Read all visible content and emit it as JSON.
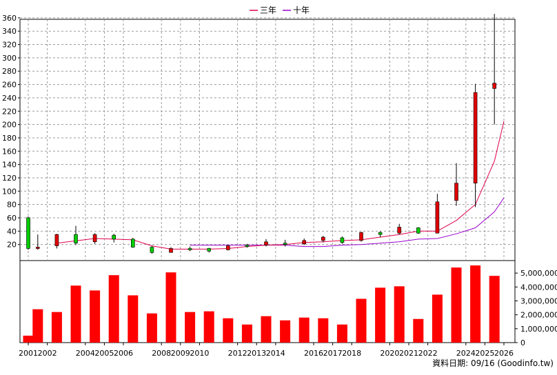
{
  "chart_data": {
    "type": "candlestick+bar",
    "legend": [
      {
        "name": "三年",
        "color": "#e0004a"
      },
      {
        "name": "十年",
        "color": "#9900cc"
      }
    ],
    "legend_position": "top-center",
    "price_axis": {
      "range": [
        0,
        370
      ],
      "ticks": [
        20,
        40,
        60,
        80,
        100,
        120,
        140,
        160,
        180,
        200,
        220,
        240,
        260,
        280,
        300,
        320,
        340,
        360
      ],
      "side": "left",
      "grid": true
    },
    "volume_axis": {
      "range": [
        0,
        5900000
      ],
      "ticks": [
        "0",
        "1,000,000",
        "2,000,000",
        "3,000,000",
        "4,000,000",
        "5,000,000"
      ],
      "tick_values": [
        0,
        1000000,
        2000000,
        3000000,
        4000000,
        5000000
      ],
      "side": "right"
    },
    "x_labels": [
      "2001",
      "2002",
      "2004",
      "2005",
      "2006",
      "2008",
      "2009",
      "2010",
      "2012",
      "2013",
      "2014",
      "2016",
      "2017",
      "2018",
      "2020",
      "2021",
      "2022",
      "2024",
      "2025",
      "2026"
    ],
    "periods": [
      {
        "x": 2001.0,
        "open": 14,
        "high": 62,
        "low": 12,
        "close": 60,
        "volume": 500000
      },
      {
        "x": 2001.5,
        "open": 16,
        "high": 35,
        "low": 12,
        "close": 15,
        "volume": 2400000
      },
      {
        "x": 2002.5,
        "open": 35,
        "high": 36,
        "low": 14,
        "close": 18,
        "volume": 2200000
      },
      {
        "x": 2003.5,
        "open": 22,
        "high": 48,
        "low": 19,
        "close": 35,
        "volume": 4100000
      },
      {
        "x": 2004.5,
        "open": 35,
        "high": 37,
        "low": 21,
        "close": 24,
        "volume": 3750000
      },
      {
        "x": 2005.5,
        "open": 28,
        "high": 36,
        "low": 23,
        "close": 34,
        "volume": 4850000
      },
      {
        "x": 2006.5,
        "open": 16,
        "high": 30,
        "low": 15,
        "close": 28,
        "volume": 3400000
      },
      {
        "x": 2007.5,
        "open": 8,
        "high": 18,
        "low": 6,
        "close": 16,
        "volume": 2100000
      },
      {
        "x": 2008.5,
        "open": 14,
        "high": 16,
        "low": 8,
        "close": 8,
        "volume": 5050000
      },
      {
        "x": 2009.5,
        "open": 14,
        "high": 17,
        "low": 10,
        "close": 14,
        "volume": 2200000
      },
      {
        "x": 2010.5,
        "open": 10,
        "high": 15,
        "low": 8,
        "close": 14,
        "volume": 2250000
      },
      {
        "x": 2011.5,
        "open": 18,
        "high": 19,
        "low": 11,
        "close": 12,
        "volume": 1750000
      },
      {
        "x": 2012.5,
        "open": 19,
        "high": 21,
        "low": 15,
        "close": 19,
        "volume": 1300000
      },
      {
        "x": 2013.5,
        "open": 24,
        "high": 28,
        "low": 17,
        "close": 19,
        "volume": 1900000
      },
      {
        "x": 2014.5,
        "open": 20,
        "high": 27,
        "low": 17,
        "close": 22,
        "volume": 1600000
      },
      {
        "x": 2015.5,
        "open": 26,
        "high": 29,
        "low": 19,
        "close": 21,
        "volume": 1800000
      },
      {
        "x": 2016.5,
        "open": 31,
        "high": 33,
        "low": 23,
        "close": 26,
        "volume": 1750000
      },
      {
        "x": 2017.5,
        "open": 23,
        "high": 32,
        "low": 21,
        "close": 30,
        "volume": 1300000
      },
      {
        "x": 2018.5,
        "open": 38,
        "high": 39,
        "low": 24,
        "close": 26,
        "volume": 3150000
      },
      {
        "x": 2019.5,
        "open": 35,
        "high": 40,
        "low": 31,
        "close": 38,
        "volume": 3950000
      },
      {
        "x": 2020.5,
        "open": 46,
        "high": 51,
        "low": 35,
        "close": 37,
        "volume": 4050000
      },
      {
        "x": 2021.5,
        "open": 37,
        "high": 46,
        "low": 36,
        "close": 45,
        "volume": 1700000
      },
      {
        "x": 2022.5,
        "open": 84,
        "high": 96,
        "low": 37,
        "close": 37,
        "volume": 3450000
      },
      {
        "x": 2023.5,
        "open": 112,
        "high": 142,
        "low": 78,
        "close": 86,
        "volume": 5400000
      },
      {
        "x": 2024.5,
        "open": 248,
        "high": 261,
        "low": 76,
        "close": 112,
        "volume": 5550000
      },
      {
        "x": 2025.5,
        "open": 262,
        "high": 366,
        "low": 200,
        "close": 254,
        "volume": 4800000
      }
    ],
    "ma_3yr": [
      {
        "x": 2002.5,
        "y": 22
      },
      {
        "x": 2004.5,
        "y": 29
      },
      {
        "x": 2005.5,
        "y": 28
      },
      {
        "x": 2006.5,
        "y": 27
      },
      {
        "x": 2007.5,
        "y": 18
      },
      {
        "x": 2008.5,
        "y": 13
      },
      {
        "x": 2009.5,
        "y": 13
      },
      {
        "x": 2010.5,
        "y": 13
      },
      {
        "x": 2011.5,
        "y": 14
      },
      {
        "x": 2012.5,
        "y": 17
      },
      {
        "x": 2013.5,
        "y": 19
      },
      {
        "x": 2014.5,
        "y": 20
      },
      {
        "x": 2015.5,
        "y": 23
      },
      {
        "x": 2016.5,
        "y": 24
      },
      {
        "x": 2017.5,
        "y": 26
      },
      {
        "x": 2018.5,
        "y": 27
      },
      {
        "x": 2019.5,
        "y": 31
      },
      {
        "x": 2020.5,
        "y": 35
      },
      {
        "x": 2021.5,
        "y": 40
      },
      {
        "x": 2022.5,
        "y": 40
      },
      {
        "x": 2023.5,
        "y": 56
      },
      {
        "x": 2024.5,
        "y": 80
      },
      {
        "x": 2025.5,
        "y": 145
      },
      {
        "x": 2026.0,
        "y": 205
      }
    ],
    "ma_10yr": [
      {
        "x": 2009.5,
        "y": 19
      },
      {
        "x": 2010.5,
        "y": 19
      },
      {
        "x": 2011.5,
        "y": 19
      },
      {
        "x": 2012.5,
        "y": 19
      },
      {
        "x": 2013.5,
        "y": 19
      },
      {
        "x": 2014.5,
        "y": 19
      },
      {
        "x": 2015.5,
        "y": 17
      },
      {
        "x": 2016.5,
        "y": 17
      },
      {
        "x": 2017.5,
        "y": 19
      },
      {
        "x": 2018.5,
        "y": 20
      },
      {
        "x": 2019.5,
        "y": 22
      },
      {
        "x": 2020.5,
        "y": 24
      },
      {
        "x": 2021.5,
        "y": 28
      },
      {
        "x": 2022.5,
        "y": 29
      },
      {
        "x": 2023.5,
        "y": 36
      },
      {
        "x": 2024.5,
        "y": 45
      },
      {
        "x": 2025.5,
        "y": 69
      },
      {
        "x": 2026.0,
        "y": 90
      }
    ]
  },
  "footer": {
    "source": "資料日期: 09/16  (Goodinfo.tw)"
  }
}
